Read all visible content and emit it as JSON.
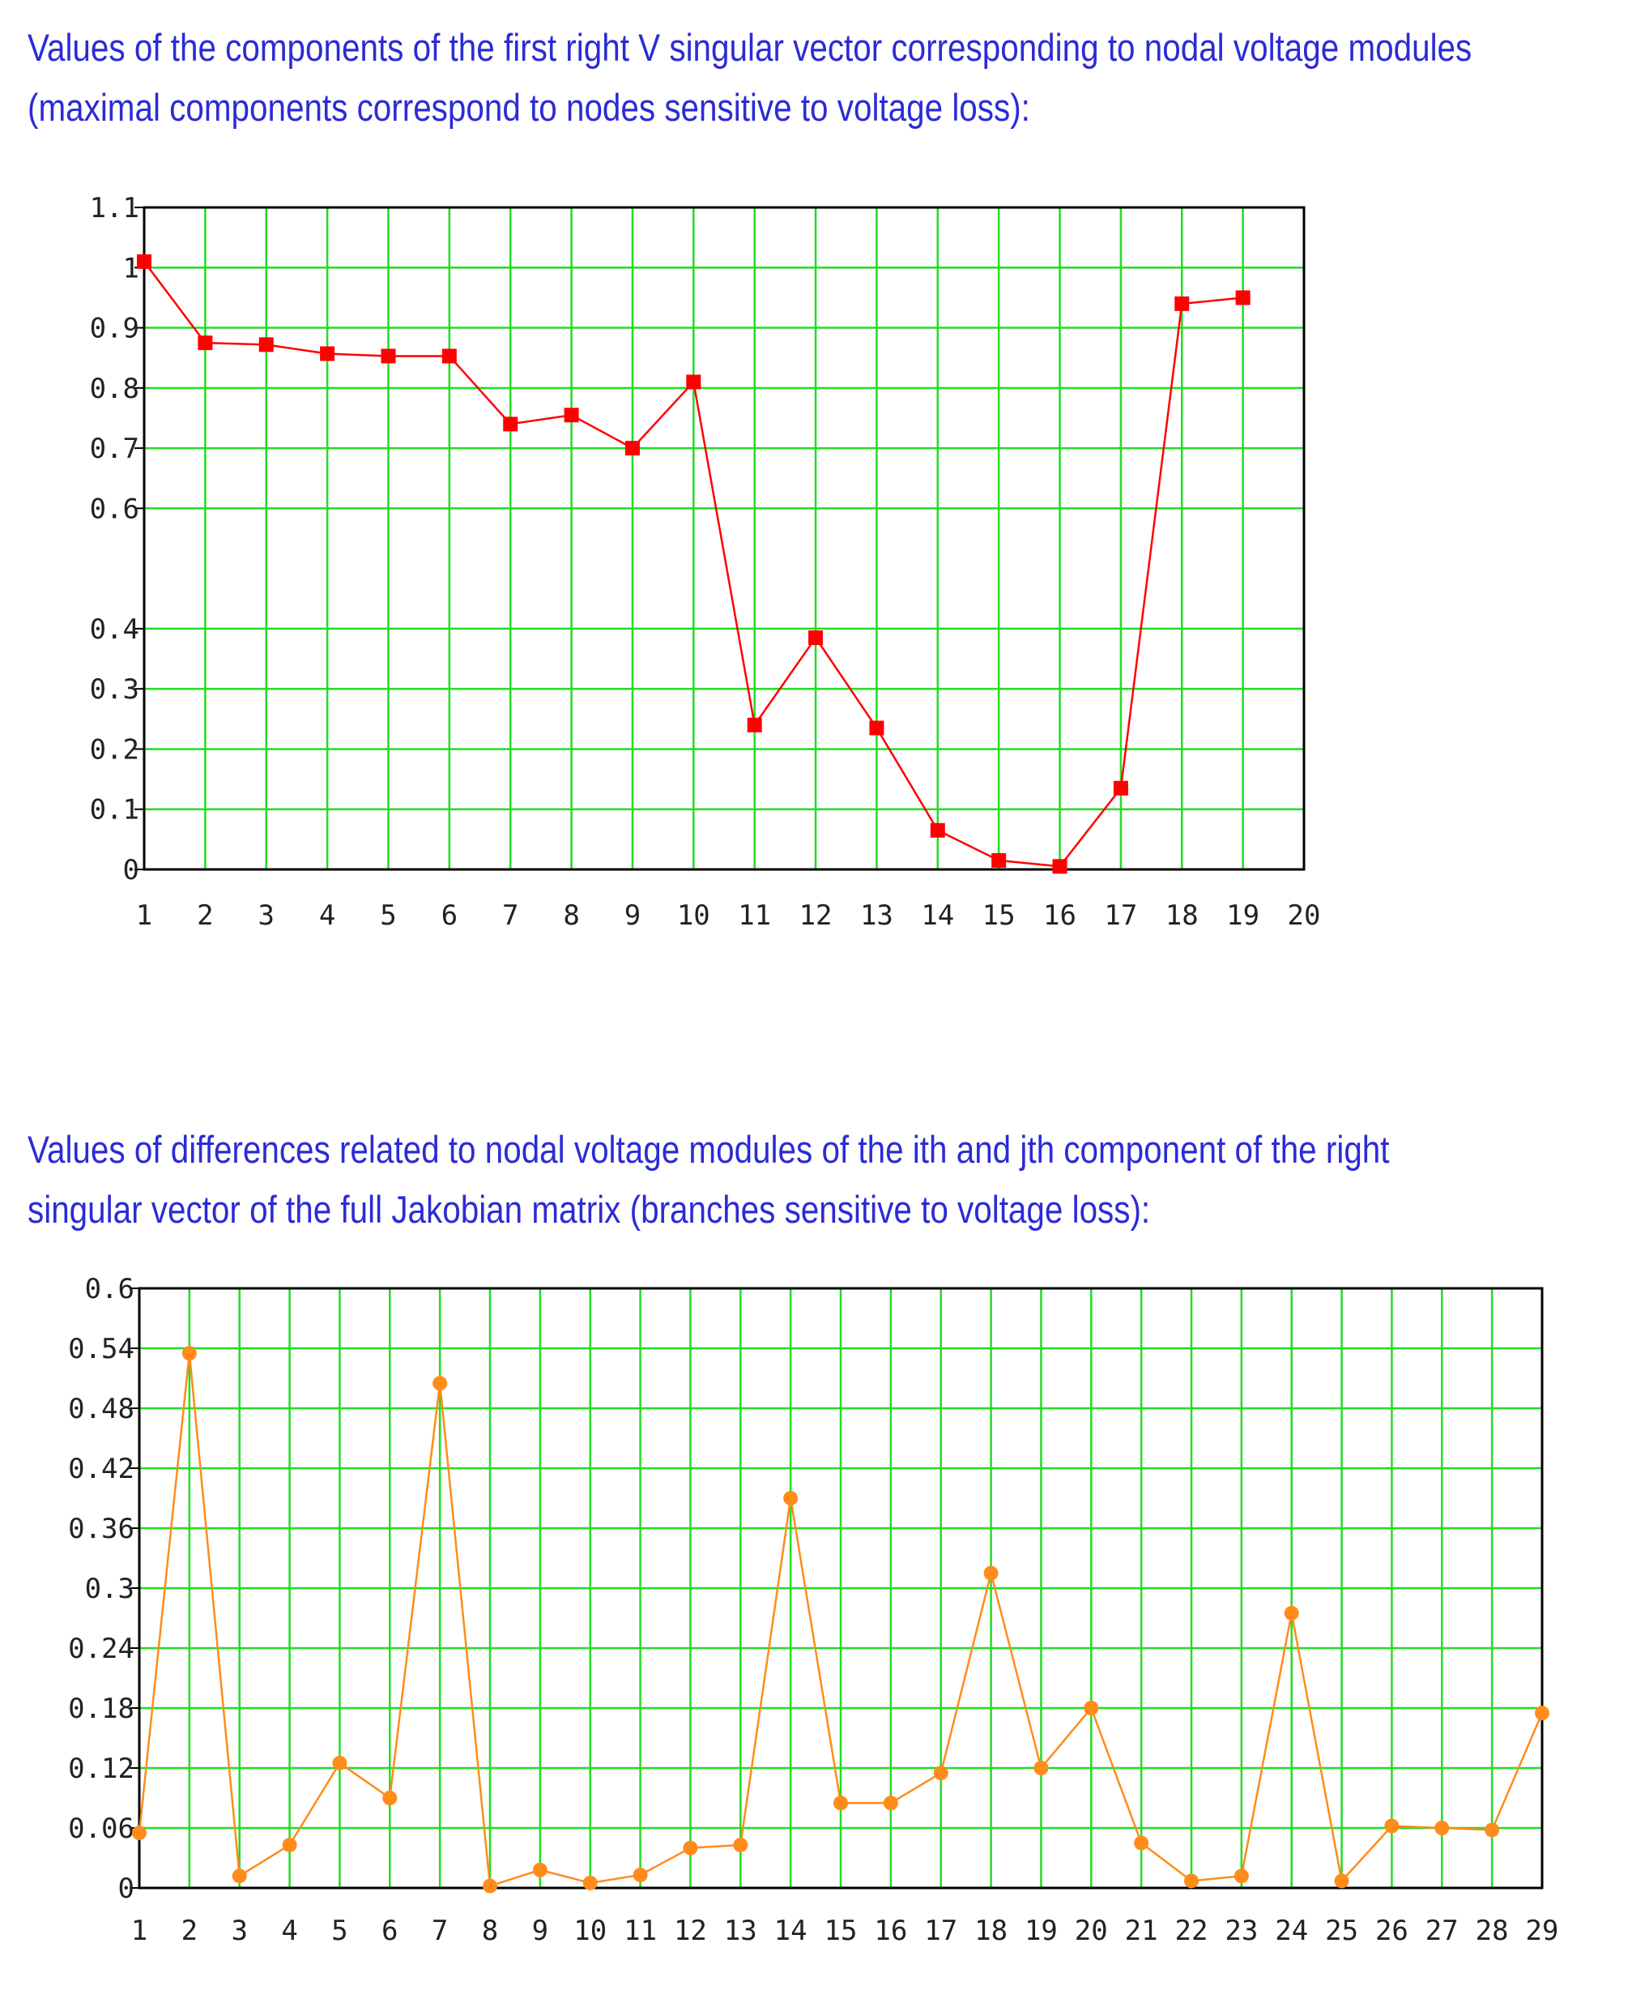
{
  "captions": {
    "top": "Values of the components of the first right V singular vector corresponding to nodal voltage modules (maximal components correspond to nodes sensitive to voltage loss):",
    "top_lines": [
      "Values of the components of the first right V singular vector corresponding to nodal voltage modules",
      "(maximal components correspond to nodes sensitive to voltage loss):"
    ],
    "bottom": "Values of differences related to nodal voltage modules of the ith and jth component of the right singular vector of the full Jakobian matrix (branches sensitive to voltage loss):",
    "bottom_lines": [
      "Values of differences related to nodal voltage modules of the ith and jth component of the right",
      "singular vector of the full Jakobian matrix (branches sensitive to voltage loss):"
    ]
  },
  "colors": {
    "caption": "#2b2bd6",
    "grid": "#22dd22",
    "axis": "#000000",
    "series1": "#ff0000",
    "series2": "#ff8c1a"
  },
  "chart_data": [
    {
      "type": "line",
      "title": "",
      "xlabel": "",
      "ylabel": "",
      "marker": "square",
      "grid": true,
      "xlim": [
        1,
        20
      ],
      "ylim": [
        0,
        1.1
      ],
      "x_ticks": [
        1,
        2,
        3,
        4,
        5,
        6,
        7,
        8,
        9,
        10,
        11,
        12,
        13,
        14,
        15,
        16,
        17,
        18,
        19,
        20
      ],
      "y_ticks": [
        0,
        0.1,
        0.2,
        0.3,
        0.4,
        0.6,
        0.7,
        0.8,
        0.9,
        1,
        1.1
      ],
      "y_tick_labels": [
        "0",
        "0.1",
        "0.2",
        "0.3",
        "0.4",
        "0.6",
        "0.7",
        "0.8",
        "0.9",
        "1",
        "1.1"
      ],
      "x": [
        1,
        2,
        3,
        4,
        5,
        6,
        7,
        8,
        9,
        10,
        11,
        12,
        13,
        14,
        15,
        16,
        17,
        18,
        19
      ],
      "values": [
        1.01,
        0.875,
        0.872,
        0.857,
        0.853,
        0.853,
        0.74,
        0.755,
        0.7,
        0.81,
        0.24,
        0.385,
        0.235,
        0.065,
        0.015,
        0.005,
        0.135,
        0.94,
        0.95
      ]
    },
    {
      "type": "line",
      "title": "",
      "xlabel": "",
      "ylabel": "",
      "marker": "circle",
      "grid": true,
      "xlim": [
        1,
        29
      ],
      "ylim": [
        0,
        0.6
      ],
      "x_ticks": [
        1,
        2,
        3,
        4,
        5,
        6,
        7,
        8,
        9,
        10,
        11,
        12,
        13,
        14,
        15,
        16,
        17,
        18,
        19,
        20,
        21,
        22,
        23,
        24,
        25,
        26,
        27,
        28,
        29
      ],
      "y_ticks": [
        0,
        0.06,
        0.12,
        0.18,
        0.24,
        0.3,
        0.36,
        0.42,
        0.48,
        0.54,
        0.6
      ],
      "y_tick_labels": [
        "0",
        "0.06",
        "0.12",
        "0.18",
        "0.24",
        "0.3",
        "0.36",
        "0.42",
        "0.48",
        "0.54",
        "0.6"
      ],
      "x": [
        1,
        2,
        3,
        4,
        5,
        6,
        7,
        8,
        9,
        10,
        11,
        12,
        13,
        14,
        15,
        16,
        17,
        18,
        19,
        20,
        21,
        22,
        23,
        24,
        25,
        26,
        27,
        28,
        29
      ],
      "values": [
        0.055,
        0.535,
        0.012,
        0.043,
        0.125,
        0.09,
        0.505,
        0.002,
        0.018,
        0.005,
        0.013,
        0.04,
        0.043,
        0.39,
        0.085,
        0.085,
        0.115,
        0.315,
        0.12,
        0.18,
        0.045,
        0.007,
        0.012,
        0.275,
        0.007,
        0.062,
        0.06,
        0.058,
        0.175
      ]
    }
  ]
}
